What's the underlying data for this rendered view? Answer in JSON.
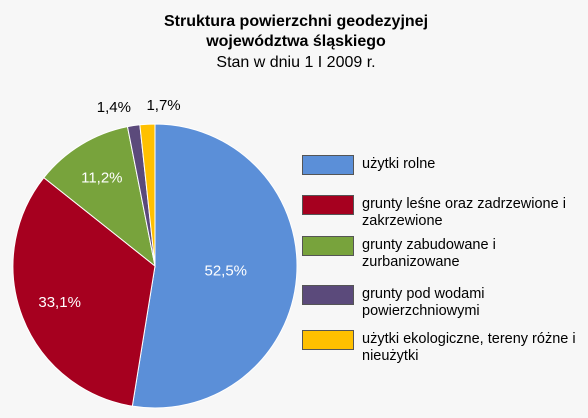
{
  "chart_data": {
    "type": "pie",
    "title": [
      "Struktura powierzchni geodezyjnej",
      "województwa śląskiego"
    ],
    "subtitle": "Stan w dniu 1 I 2009 r.",
    "categories": [
      "użytki rolne",
      "grunty leśne oraz zadrzewione i zakrzewione",
      "grunty zabudowane i zurbanizowane",
      "grunty pod wodami powierzchniowymi",
      "użytki ekologiczne, tereny różne i nieużytki"
    ],
    "values": [
      52.5,
      33.1,
      11.2,
      1.4,
      1.7
    ],
    "value_labels": [
      "52,5%",
      "33,1%",
      "11,2%",
      "1,4%",
      "1,7%"
    ],
    "colors": [
      "#5b8fd8",
      "#a6001f",
      "#78a33c",
      "#5b4a7b",
      "#ffc000"
    ],
    "legend": "right"
  }
}
